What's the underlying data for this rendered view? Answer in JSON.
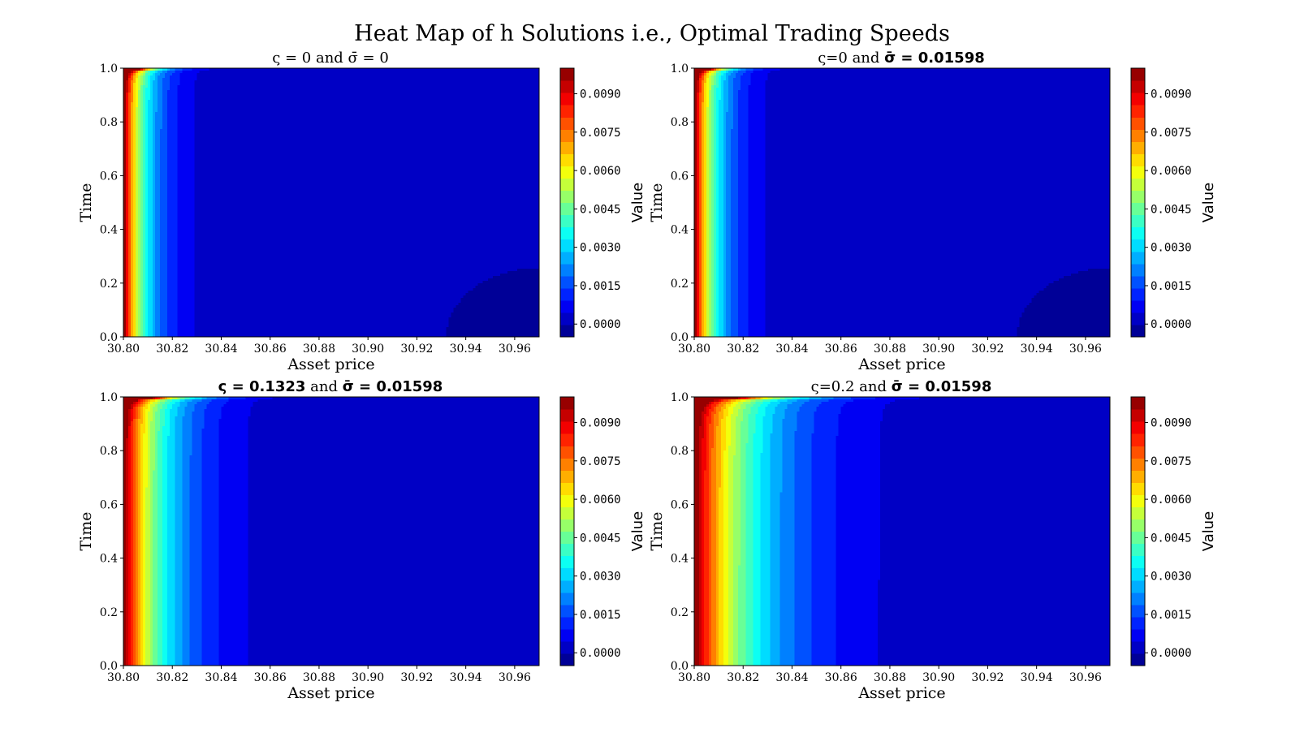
{
  "figure": {
    "suptitle": "Heat Map of h Solutions i.e., Optimal Trading Speeds"
  },
  "chart_data": [
    {
      "type": "heatmap",
      "title_parts": [
        {
          "text": "ς = 0",
          "bold": false
        },
        {
          "text": " and ",
          "bold": false
        },
        {
          "text": "σ̄ = 0",
          "bold": false
        }
      ],
      "xlabel": "Asset price",
      "ylabel": "Time",
      "colorbar_label": "Value",
      "xlim": [
        30.8,
        30.97
      ],
      "ylim": [
        0.0,
        1.0
      ],
      "x_ticks": [
        "30.80",
        "30.82",
        "30.84",
        "30.86",
        "30.88",
        "30.90",
        "30.92",
        "30.94",
        "30.96"
      ],
      "y_ticks": [
        "0.0",
        "0.2",
        "0.4",
        "0.6",
        "0.8",
        "1.0"
      ],
      "x_decay": 0.009,
      "value_range": [
        -0.0005,
        0.01
      ],
      "colorbar_ticks": [
        "0.0000",
        "0.0015",
        "0.0030",
        "0.0045",
        "0.0060",
        "0.0075",
        "0.0090"
      ],
      "dark_corner_reach": 0.04
    },
    {
      "type": "heatmap",
      "title_parts": [
        {
          "text": "ς=0",
          "bold": false
        },
        {
          "text": " and ",
          "bold": false
        },
        {
          "text": "σ̄ = 0.01598",
          "bold": true
        }
      ],
      "xlabel": "Asset price",
      "ylabel": "Time",
      "colorbar_label": "Value",
      "xlim": [
        30.8,
        30.97
      ],
      "ylim": [
        0.0,
        1.0
      ],
      "x_ticks": [
        "30.80",
        "30.82",
        "30.84",
        "30.86",
        "30.88",
        "30.90",
        "30.92",
        "30.94",
        "30.96"
      ],
      "y_ticks": [
        "0.0",
        "0.2",
        "0.4",
        "0.6",
        "0.8",
        "1.0"
      ],
      "x_decay": 0.009,
      "value_range": [
        -0.0005,
        0.01
      ],
      "colorbar_ticks": [
        "0.0000",
        "0.0015",
        "0.0030",
        "0.0045",
        "0.0060",
        "0.0075",
        "0.0090"
      ],
      "dark_corner_reach": 0.04
    },
    {
      "type": "heatmap",
      "title_parts": [
        {
          "text": "ς = 0.1323",
          "bold": true
        },
        {
          "text": " and ",
          "bold": false
        },
        {
          "text": "σ̄ = 0.01598",
          "bold": true
        }
      ],
      "xlabel": "Asset price",
      "ylabel": "Time",
      "colorbar_label": "Value",
      "xlim": [
        30.8,
        30.97
      ],
      "ylim": [
        0.0,
        1.0
      ],
      "x_ticks": [
        "30.80",
        "30.82",
        "30.84",
        "30.86",
        "30.88",
        "30.90",
        "30.92",
        "30.94",
        "30.96"
      ],
      "y_ticks": [
        "0.0",
        "0.2",
        "0.4",
        "0.6",
        "0.8",
        "1.0"
      ],
      "x_decay": 0.016,
      "value_range": [
        -0.0005,
        0.01
      ],
      "colorbar_ticks": [
        "0.0000",
        "0.0015",
        "0.0030",
        "0.0045",
        "0.0060",
        "0.0075",
        "0.0090"
      ],
      "dark_corner_reach": 0.0
    },
    {
      "type": "heatmap",
      "title_parts": [
        {
          "text": "ς=0.2",
          "bold": false
        },
        {
          "text": " and ",
          "bold": false
        },
        {
          "text": "σ̄ = 0.01598",
          "bold": true
        }
      ],
      "xlabel": "Asset price",
      "ylabel": "Time",
      "colorbar_label": "Value",
      "xlim": [
        30.8,
        30.97
      ],
      "ylim": [
        0.0,
        1.0
      ],
      "x_ticks": [
        "30.80",
        "30.82",
        "30.84",
        "30.86",
        "30.88",
        "30.90",
        "30.92",
        "30.94",
        "30.96"
      ],
      "y_ticks": [
        "0.0",
        "0.2",
        "0.4",
        "0.6",
        "0.8",
        "1.0"
      ],
      "x_decay": 0.024,
      "value_range": [
        -0.0005,
        0.01
      ],
      "colorbar_ticks": [
        "0.0000",
        "0.0015",
        "0.0030",
        "0.0045",
        "0.0060",
        "0.0075",
        "0.0090"
      ],
      "dark_corner_reach": 0.0
    }
  ]
}
